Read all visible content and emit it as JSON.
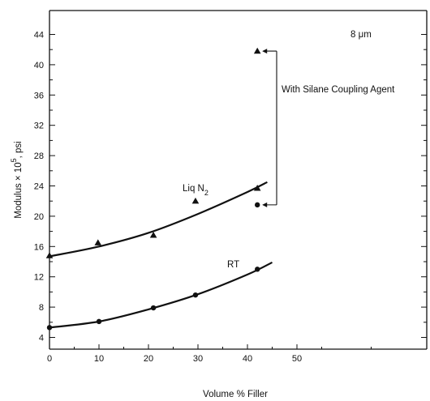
{
  "chart_data": {
    "type": "scatter",
    "xlabel": "Volume % Filler",
    "ylabel": "Modulus × 10",
    "ylabel_exponent": "5",
    "ylabel_unit": ", psi",
    "xlim": [
      0,
      50
    ],
    "ylim": [
      3,
      44
    ],
    "x_ticks": [
      0,
      10,
      20,
      30,
      40,
      50
    ],
    "y_ticks": [
      4,
      8,
      12,
      16,
      20,
      24,
      28,
      32,
      36,
      40,
      44
    ],
    "grid": false,
    "series": [
      {
        "marker": "triangle",
        "label_main": "Liq N",
        "label_sub": "2",
        "points": [
          {
            "x": 0,
            "y": 14.8
          },
          {
            "x": 9.8,
            "y": 16.5
          },
          {
            "x": 21,
            "y": 17.5
          },
          {
            "x": 29.5,
            "y": 22.0
          },
          {
            "x": 42,
            "y": 23.7
          }
        ],
        "fit": [
          {
            "x": 0,
            "y": 14.7
          },
          {
            "x": 10,
            "y": 16.0
          },
          {
            "x": 20,
            "y": 17.8
          },
          {
            "x": 30,
            "y": 20.3
          },
          {
            "x": 40,
            "y": 23.2
          },
          {
            "x": 44,
            "y": 24.5
          }
        ]
      },
      {
        "marker": "circle",
        "label_main": "RT",
        "label_sub": "",
        "points": [
          {
            "x": 0,
            "y": 5.3
          },
          {
            "x": 10,
            "y": 6.1
          },
          {
            "x": 21,
            "y": 7.9
          },
          {
            "x": 29.5,
            "y": 9.6
          },
          {
            "x": 42,
            "y": 13.0
          }
        ],
        "fit": [
          {
            "x": 0,
            "y": 5.3
          },
          {
            "x": 10,
            "y": 6.1
          },
          {
            "x": 20,
            "y": 7.7
          },
          {
            "x": 30,
            "y": 9.7
          },
          {
            "x": 40,
            "y": 12.3
          },
          {
            "x": 45,
            "y": 13.9
          }
        ]
      }
    ],
    "extra_points": [
      {
        "marker": "triangle",
        "x": 42,
        "y": 41.8
      },
      {
        "marker": "circle",
        "x": 42,
        "y": 21.5
      }
    ],
    "annotations": {
      "particle_size": "8 μm",
      "silane_label": "With Silane Coupling Agent"
    }
  }
}
